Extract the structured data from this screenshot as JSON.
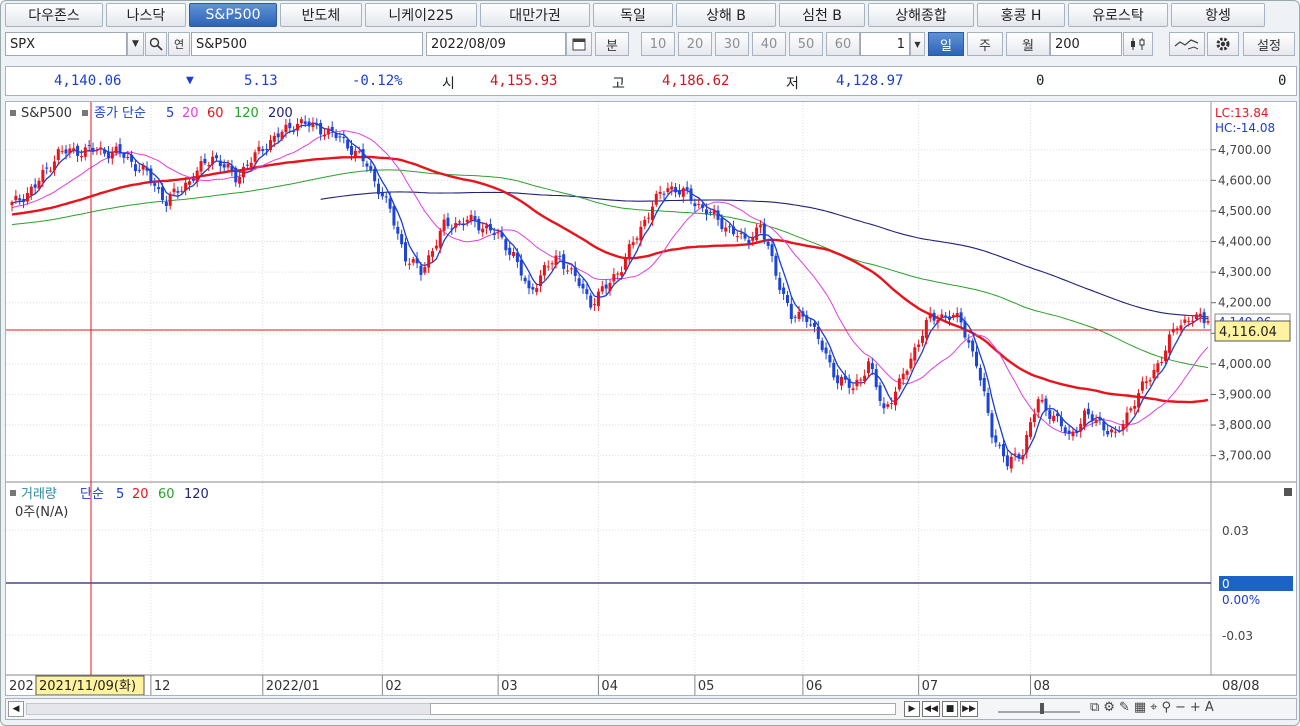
{
  "tabs": [
    "다우존스",
    "나스닥",
    "S&P500",
    "반도체",
    "니케이225",
    "대만가권",
    "독일",
    "상해 B",
    "심천 B",
    "상해종합",
    "홍콩 H",
    "유로스탁",
    "항셍"
  ],
  "active_tab": "S&P500",
  "toolbar": {
    "symbol_code": "SPX",
    "symbol_name": "S&P500",
    "date": "2022/08/09",
    "unit_minute": "분",
    "minute_options": [
      "10",
      "20",
      "30",
      "40",
      "50",
      "60"
    ],
    "count_value": "1",
    "period_day": "일",
    "period_week": "주",
    "period_month": "월",
    "bar_count": "200",
    "settings_label": "설정"
  },
  "quote": {
    "price": "4,140.06",
    "change_arrow": "▼",
    "change": "5.13",
    "change_pct": "-0.12%",
    "open_label": "시",
    "open": "4,155.93",
    "high_label": "고",
    "high": "4,186.62",
    "low_label": "저",
    "low": "4,128.97",
    "volume": "0",
    "amount": "0"
  },
  "price_panel": {
    "legend_name": "S&P500",
    "legend_ma": "종가 단순",
    "ma_periods": [
      "5",
      "20",
      "60",
      "120",
      "200"
    ],
    "lc_label": "LC:13.84",
    "hc_label": "HC:-14.08",
    "y_ticks": [
      "4,700.00",
      "4,600.00",
      "4,500.00",
      "4,400.00",
      "4,300.00",
      "4,200.00",
      "4,100.00",
      "4,000.00",
      "3,900.00",
      "3,800.00",
      "3,700.00"
    ],
    "current_price_tag": "4,140.06",
    "crosshair_tag": "4,116.04"
  },
  "volume_panel": {
    "legend_name": "거래량",
    "legend_ma": "단순",
    "ma_periods": [
      "5",
      "20",
      "60",
      "120"
    ],
    "no_data": "0주(N/A)",
    "y_ticks": [
      "0.03",
      "0",
      "0.00%",
      "-0.03"
    ]
  },
  "x_axis": {
    "labels": [
      "12",
      "2022/01",
      "02",
      "03",
      "04",
      "05",
      "06",
      "07",
      "08"
    ],
    "left_cut_label": "202",
    "crosshair_date": "2021/11/09(화)",
    "last_date": "08/08"
  },
  "colors": {
    "up": "#e8141c",
    "down": "#1c44d8",
    "ma5": "#1c3cd6",
    "ma20": "#e040e0",
    "ma60": "#e8141c",
    "ma120": "#2aa02a",
    "ma200": "#22227a",
    "accent": "#2c63b6"
  },
  "chart_data": {
    "type": "candlestick",
    "title": "S&P500",
    "y_range": [
      3640,
      4830
    ],
    "anchors_close": [
      [
        0,
        4520
      ],
      [
        6,
        4580
      ],
      [
        12,
        4690
      ],
      [
        20,
        4700
      ],
      [
        28,
        4690
      ],
      [
        35,
        4620
      ],
      [
        40,
        4530
      ],
      [
        46,
        4600
      ],
      [
        52,
        4680
      ],
      [
        58,
        4610
      ],
      [
        66,
        4720
      ],
      [
        74,
        4790
      ],
      [
        80,
        4770
      ],
      [
        86,
        4730
      ],
      [
        92,
        4650
      ],
      [
        98,
        4500
      ],
      [
        102,
        4350
      ],
      [
        106,
        4300
      ],
      [
        112,
        4450
      ],
      [
        118,
        4470
      ],
      [
        124,
        4440
      ],
      [
        130,
        4360
      ],
      [
        134,
        4230
      ],
      [
        138,
        4310
      ],
      [
        142,
        4350
      ],
      [
        146,
        4280
      ],
      [
        150,
        4200
      ],
      [
        154,
        4250
      ],
      [
        158,
        4320
      ],
      [
        162,
        4420
      ],
      [
        166,
        4520
      ],
      [
        170,
        4580
      ],
      [
        174,
        4560
      ],
      [
        180,
        4500
      ],
      [
        186,
        4440
      ],
      [
        190,
        4400
      ],
      [
        194,
        4450
      ],
      [
        198,
        4300
      ],
      [
        202,
        4150
      ],
      [
        206,
        4160
      ],
      [
        210,
        4050
      ],
      [
        214,
        3950
      ],
      [
        218,
        3920
      ],
      [
        222,
        4000
      ],
      [
        226,
        3850
      ],
      [
        230,
        3930
      ],
      [
        234,
        4050
      ],
      [
        238,
        4150
      ],
      [
        242,
        4160
      ],
      [
        246,
        4140
      ],
      [
        250,
        4000
      ],
      [
        254,
        3780
      ],
      [
        258,
        3670
      ],
      [
        262,
        3720
      ],
      [
        266,
        3880
      ],
      [
        270,
        3830
      ],
      [
        274,
        3760
      ],
      [
        278,
        3830
      ],
      [
        282,
        3810
      ],
      [
        286,
        3760
      ],
      [
        290,
        3860
      ],
      [
        294,
        3940
      ],
      [
        298,
        4020
      ],
      [
        302,
        4130
      ],
      [
        306,
        4150
      ],
      [
        310,
        4140
      ]
    ],
    "ma_series": [
      "ma5",
      "ma20",
      "ma60",
      "ma120",
      "ma200"
    ]
  }
}
